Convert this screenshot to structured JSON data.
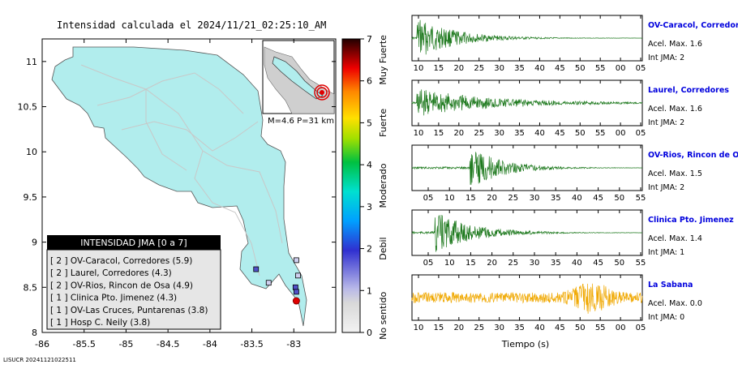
{
  "title": "Intensidad calculada el 2024/11/21_02:25:10_AM",
  "footer_code": "LISUCR 20241121022511",
  "map": {
    "lon_ticks": [
      "-86",
      "-85.5",
      "-85",
      "-84.5",
      "-84",
      "-83.5",
      "-83"
    ],
    "lat_ticks": [
      "11",
      "10.5",
      "10",
      "9.5",
      "9",
      "8.5",
      "8"
    ],
    "land_color": "#b1eded",
    "inset_label": "M=4.6 P=31 km"
  },
  "colorbar": {
    "ticks": [
      "0",
      "1",
      "2",
      "3",
      "4",
      "5",
      "6",
      "7"
    ],
    "labels": [
      "No sentido",
      "Debil",
      "Moderado",
      "Fuerte",
      "Muy Fuerte"
    ]
  },
  "legend": {
    "header": "INTENSIDAD JMA [0 a 7]",
    "items": [
      "[ 2 ]  OV-Caracol, Corredores (5.9)",
      "[ 2 ]  Laurel, Corredores (4.3)",
      "[ 2 ]  OV-Rios, Rincon de Osa (4.9)",
      "[ 1 ]  Clinica Pto. Jimenez (4.3)",
      "[ 1 ]  OV-Las Cruces, Puntarenas (3.8)",
      "[ 1 ]  Hosp C. Neily (3.8)"
    ]
  },
  "waveforms": {
    "xlabel": "Tiempo (s)",
    "bottom_ticks": [
      "10",
      "15",
      "20",
      "25",
      "30",
      "35",
      "40",
      "45",
      "50",
      "55",
      "00",
      "05"
    ],
    "panels": [
      {
        "station": "OV-Caracol, Corredores",
        "acel": "Acel. Max. 1.6",
        "jma": "Int JMA: 2",
        "color": "#1f7a1f",
        "ticks": [
          "10",
          "15",
          "20",
          "25",
          "30",
          "35",
          "40",
          "45",
          "50",
          "55",
          "00",
          "05"
        ]
      },
      {
        "station": "Laurel, Corredores",
        "acel": "Acel. Max. 1.6",
        "jma": "Int JMA: 2",
        "color": "#1f7a1f",
        "ticks": [
          "10",
          "15",
          "20",
          "25",
          "30",
          "35",
          "40",
          "45",
          "50",
          "55",
          "00",
          "05"
        ]
      },
      {
        "station": "OV-Rios, Rincon de Os",
        "acel": "Acel. Max. 1.5",
        "jma": "Int JMA: 2",
        "color": "#1f7a1f",
        "ticks": [
          "05",
          "10",
          "15",
          "20",
          "25",
          "30",
          "35",
          "40",
          "45",
          "50",
          "55"
        ]
      },
      {
        "station": "Clinica Pto. Jimenez",
        "acel": "Acel. Max. 1.4",
        "jma": "Int JMA: 1",
        "color": "#1f7a1f",
        "ticks": [
          "05",
          "10",
          "15",
          "20",
          "25",
          "30",
          "35",
          "40",
          "45",
          "50",
          "55"
        ]
      },
      {
        "station": "La Sabana",
        "acel": "Acel. Max. 0.0",
        "jma": "Int JMA: 0",
        "color": "#f0a800",
        "ticks": []
      }
    ]
  },
  "chart_data": {
    "type": "map",
    "title": "Intensidad calculada el 2024/11/21_02:25:10_AM",
    "xlim": [
      -86,
      -82.5
    ],
    "ylim": [
      8,
      11.25
    ],
    "epicenter": {
      "lon": -82.97,
      "lat": 8.35,
      "magnitude": 4.6,
      "depth_km": 31
    },
    "stations": [
      {
        "name": "OV-Caracol, Corredores",
        "jma": 2,
        "lon": -82.98,
        "lat": 8.5
      },
      {
        "name": "Laurel, Corredores",
        "jma": 2,
        "lon": -82.97,
        "lat": 8.45
      },
      {
        "name": "OV-Rios, Rincon de Osa",
        "jma": 2,
        "lon": -83.45,
        "lat": 8.7
      },
      {
        "name": "Clinica Pto. Jimenez",
        "jma": 1,
        "lon": -83.3,
        "lat": 8.55
      },
      {
        "name": "OV-Las Cruces, Puntarenas",
        "jma": 1,
        "lon": -82.97,
        "lat": 8.8
      },
      {
        "name": "Hosp C. Neily",
        "jma": 1,
        "lon": -82.95,
        "lat": 8.63
      }
    ]
  }
}
